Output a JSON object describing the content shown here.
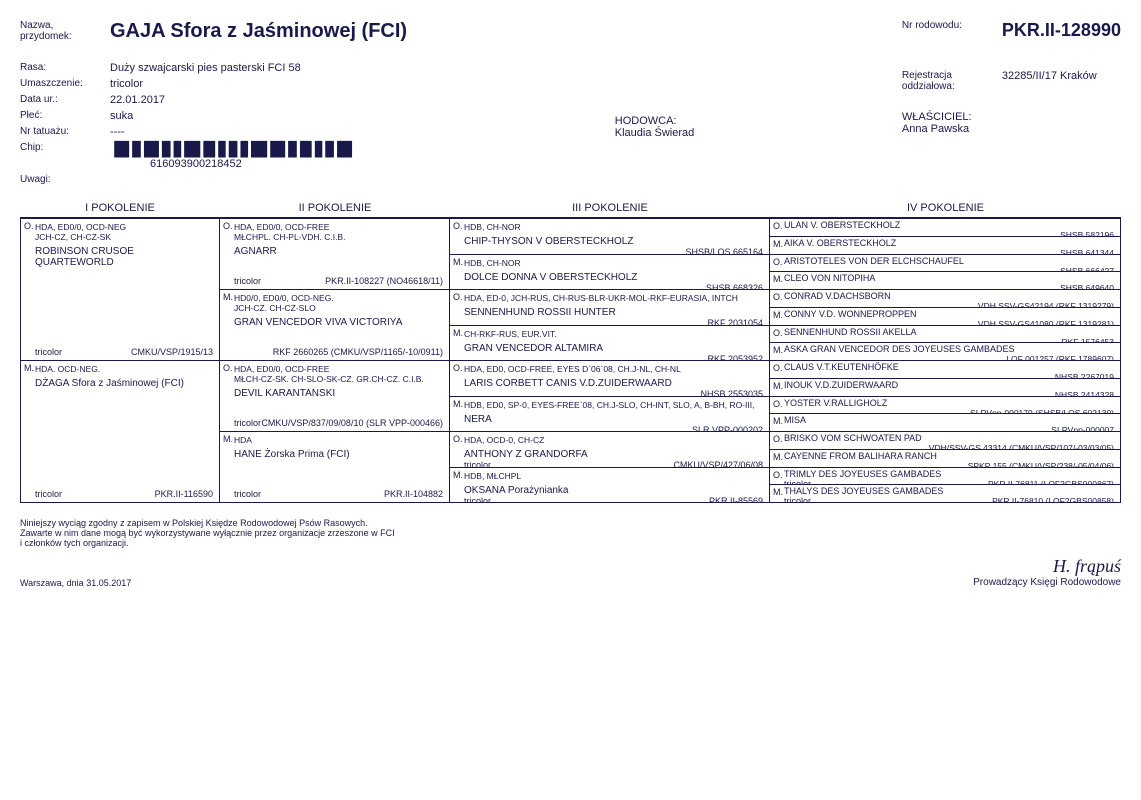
{
  "labels": {
    "name": "Nazwa,\nprzydomek:",
    "breed": "Rasa:",
    "color": "Umaszczenie:",
    "dob": "Data ur.:",
    "sex": "Płeć:",
    "tattoo": "Nr tatuażu:",
    "chip": "Chip:",
    "remarks": "Uwagi:",
    "pednum": "Nr rodowodu:",
    "regdiv": "Rejestracja\noddziałowa:",
    "breeder": "HODOWCA:",
    "owner": "WŁAŚCICIEL:"
  },
  "dog": {
    "name": "GAJA Sfora z Jaśminowej (FCI)",
    "breed": "Duży szwajcarski pies pasterski FCI 58",
    "color": "tricolor",
    "dob": "22.01.2017",
    "sex": "suka",
    "tattoo": "----",
    "chip": "616093900218452",
    "pednum": "PKR.II-128990",
    "regdiv": "32285/II/17 Kraków",
    "breeder": "Klaudia Świerad",
    "owner": "Anna Pawska"
  },
  "gen_labels": {
    "g1": "I  POKOLENIE",
    "g2": "II  POKOLENIE",
    "g3": "III  POKOLENIE",
    "g4": "IV  POKOLENIE"
  },
  "g1": [
    {
      "sex": "O.",
      "titles": "HDA, ED0/0, OCD-NEG\nJCH-CZ, CH-CZ-SK",
      "name": "ROBINSON CRUSOE QUARTEWORLD",
      "color": "tricolor",
      "reg": "CMKU/VSP/1915/13"
    },
    {
      "sex": "M.",
      "titles": "HDA. OCD-NEG.",
      "name": "DŻAGA Sfora z Jaśminowej (FCI)",
      "color": "tricolor",
      "reg": "PKR.II-116590"
    }
  ],
  "g2": [
    {
      "sex": "O.",
      "titles": "HDA, ED0/0, OCD-FREE\nMŁCHPL. CH-PL-VDH. C.I.B.",
      "name": "AGNARR",
      "color": "tricolor",
      "reg": "PKR.II-108227 (NO46618/11)"
    },
    {
      "sex": "M.",
      "titles": "HD0/0, ED0/0, OCD-NEG.\nJCH-CZ. CH-CZ-SLO",
      "name": "GRAN VENCEDOR VIVA VICTORIYA",
      "color": "",
      "reg": "RKF 2660265 (CMKU/VSP/1165/-10/0911)"
    },
    {
      "sex": "O.",
      "titles": "HDA, ED0/0, OCD-FREE\nMŁCH-CZ-SK. CH-SLO-SK-CZ. GR.CH-CZ. C.I.B.",
      "name": "DEVIL KARANTANSKI",
      "color": "tricolor",
      "reg": "CMKU/VSP/837/09/08/10 (SLR VPP-000466)"
    },
    {
      "sex": "M.",
      "titles": "HDA",
      "name": "HANE Żorska Prima (FCI)",
      "color": "tricolor",
      "reg": "PKR.II-104882"
    }
  ],
  "g3": [
    {
      "sex": "O.",
      "titles": "HDB, CH-NOR",
      "name": "CHIP-THYSON V OBERSTECKHOLZ",
      "reg": "SHSB/LOS 665164"
    },
    {
      "sex": "M.",
      "titles": "HDB, CH-NOR",
      "name": "DOLCE DONNA V OBERSTECKHOLZ",
      "reg": "SHSB 668326"
    },
    {
      "sex": "O.",
      "titles": "HDA, ED-0, JCH-RUS, CH-RUS-BLR-UKR-MOL-RKF-EURASIA, INTCH",
      "name": "SENNENHUND ROSSII HUNTER",
      "reg": "RKF 2031054"
    },
    {
      "sex": "M.",
      "titles": "CH-RKF-RUS, EUR.VIT.",
      "name": "GRAN VENCEDOR ALTAMIRA",
      "reg": "RKF 2053952"
    },
    {
      "sex": "O.",
      "titles": "HDA, ED0, OCD-FREE, EYES D`06`08, CH.J-NL, CH-NL",
      "name": "LARIS CORBETT CANIS V.D.ZUIDERWAARD",
      "reg": "NHSB 2553035"
    },
    {
      "sex": "M.",
      "titles": "HDB, ED0, SP-0, EYES-FREE`08, CH.J-SLO, CH-INT, SLO, A, B-BH, RO-III,",
      "name": "NERA",
      "reg": "SLR VPP-000202"
    },
    {
      "sex": "O.",
      "titles": "HDA, OCD-0, CH-CZ",
      "name": "ANTHONY Z GRANDORFA",
      "color": "tricolor",
      "reg": "CMKU/VSP/427/06/08"
    },
    {
      "sex": "M.",
      "titles": "HDB, MŁCHPL",
      "name": "OKSANA Porażynianka",
      "color": "tricolor",
      "reg": "PKR.II-85569"
    }
  ],
  "g4": [
    {
      "sex": "O.",
      "name": "ULAN V. OBERSTECKHOLZ",
      "reg": "SHSB 582196"
    },
    {
      "sex": "M.",
      "name": "AIKA V. OBERSTECKHOLZ",
      "reg": "SHSB 641344"
    },
    {
      "sex": "O.",
      "name": "ARISTOTELES VON DER ELCHSCHAUFEL",
      "reg": "SHSB 666427"
    },
    {
      "sex": "M.",
      "name": "CLEO VON NITOPIHA",
      "reg": "SHSB 649640"
    },
    {
      "sex": "O.",
      "name": "CONRAD V.DACHSBORN",
      "reg": "VDH SSV-GS42194 (RKF 1319279)"
    },
    {
      "sex": "M.",
      "name": "CONNY V.D. WONNEPROPPEN",
      "reg": "VDH SSV-GS41080 (RKF 1319281)"
    },
    {
      "sex": "O.",
      "name": "SENNENHUND ROSSII AKELLA",
      "reg": "RKF 1576453"
    },
    {
      "sex": "M.",
      "name": "ASKA GRAN VENCEDOR DES JOYEUSES GAMBADES",
      "reg": "LOF 001257 (RKF 1789607)"
    },
    {
      "sex": "O.",
      "name": "CLAUS V.T.KEUTENHÖFKE",
      "reg": "NHSB 2267019"
    },
    {
      "sex": "M.",
      "name": "INOUK V.D.ZUIDERWAARD",
      "reg": "NHSB 2414328"
    },
    {
      "sex": "O.",
      "name": "YOSTER V.RALLIGHOLZ",
      "reg": "SLRVpp-000179 (SHSB/LOS 602130)"
    },
    {
      "sex": "M.",
      "name": "MISA",
      "reg": "SLRVpp-000007"
    },
    {
      "sex": "O.",
      "name": "BRISKO VOM SCHWOATEN PAD",
      "reg": "VDH/SSV-GS 43314 (CMKU/VSP/107/-03/03/05)"
    },
    {
      "sex": "M.",
      "name": "CAYENNE FROM BALIHARA RANCH",
      "reg": "SPKP 155 (CMKU/VSP/238/-05/04/06)"
    },
    {
      "sex": "O.",
      "name": "TRIMLY DES JOYEUSES GAMBADES",
      "color": "tricolor",
      "reg": "PKR.II-76811 (LOF2GBS000867)"
    },
    {
      "sex": "M.",
      "name": "THALYS DES JOYEUSES GAMBADES",
      "color": "tricolor",
      "reg": "PKR.II-76810 (LOF2GBS00858)"
    }
  ],
  "footer": {
    "line1": "Niniejszy wyciąg zgodny z zapisem w Polskiej Księdze Rodowodowej Psów Rasowych.",
    "line2": "Zawarte w nim dane mogą być wykorzystywane wyłącznie przez organizacje zrzeszone w FCI",
    "line3": "i członków tych organizacji.",
    "date": "Warszawa, dnia  31.05.2017",
    "sig_label": "Prowadzący Księgi Rodowodowe"
  }
}
